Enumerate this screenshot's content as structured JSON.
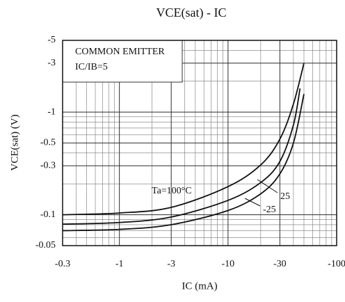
{
  "chart_data": {
    "type": "line",
    "title": "VCE(sat) - IC",
    "xlabel": "IC (mA)",
    "ylabel": "VCE(sat) (V)",
    "annotations": [
      "COMMON EMITTER",
      "IC/IB=5"
    ],
    "xscale": "log",
    "yscale": "log",
    "grid": true,
    "xlim": [
      -0.3,
      -100
    ],
    "ylim": [
      -0.05,
      -5
    ],
    "xticks": [
      -0.3,
      -1,
      -3,
      -10,
      -30,
      -100
    ],
    "yticks": [
      -0.05,
      -0.1,
      -0.3,
      -0.5,
      -1,
      -3,
      -5
    ],
    "series": [
      {
        "name": "Ta=100°C",
        "color": "#111111",
        "x": [
          -0.3,
          -1,
          -3,
          -10,
          -20,
          -30,
          -40,
          -50
        ],
        "values": [
          -0.1,
          -0.104,
          -0.118,
          -0.188,
          -0.306,
          -0.545,
          -1.2,
          -3
        ]
      },
      {
        "name": "25",
        "color": "#111111",
        "x": [
          -0.3,
          -1,
          -3,
          -10,
          -20,
          -30,
          -40,
          -46
        ],
        "values": [
          -0.081,
          -0.084,
          -0.095,
          -0.138,
          -0.206,
          -0.33,
          -0.75,
          -1.7
        ]
      },
      {
        "name": "-25",
        "color": "#111111",
        "x": [
          -0.3,
          -1,
          -3,
          -10,
          -20,
          -30,
          -40,
          -50
        ],
        "values": [
          -0.07,
          -0.072,
          -0.08,
          -0.11,
          -0.16,
          -0.25,
          -0.5,
          -1.5
        ]
      }
    ]
  }
}
